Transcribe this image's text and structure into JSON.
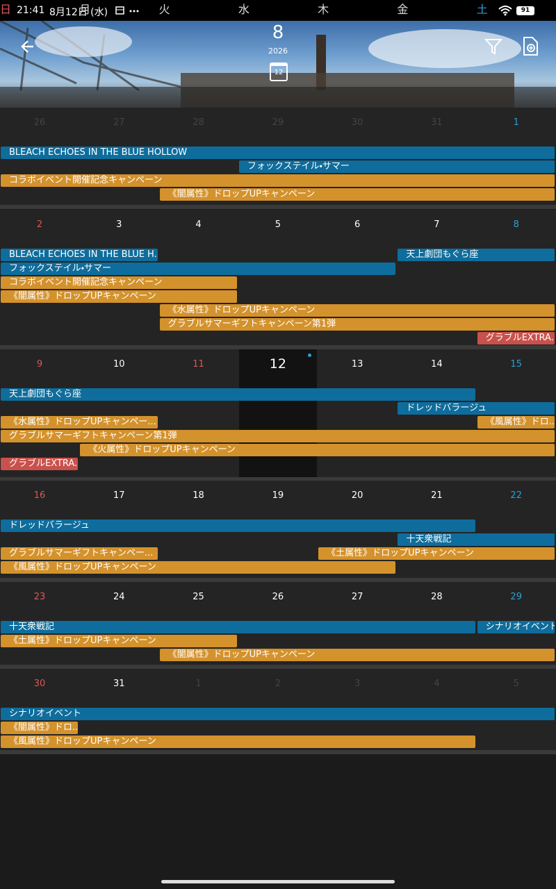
{
  "status": {
    "time": "21:41",
    "date": "8月12日 (水)",
    "battery": "91"
  },
  "header": {
    "month": "8",
    "year": "2026",
    "calendar_day": "12",
    "weekdays": [
      "日",
      "月",
      "火",
      "水",
      "木",
      "金",
      "土"
    ]
  },
  "weeks": [
    {
      "days": [
        26,
        27,
        28,
        29,
        30,
        31,
        1
      ],
      "events": [
        {
          "label": "BLEACH ECHOES IN THE BLUE HOLLOW"
        },
        {
          "label": "フォックステイル・サマー"
        },
        {
          "label": "コラボイベント開催記念キャンペーン"
        },
        {
          "label": "《闇属性》ドロップUPキャンペーン"
        }
      ]
    },
    {
      "days": [
        2,
        3,
        4,
        5,
        6,
        7,
        8
      ],
      "events": [
        {
          "label": "BLEACH ECHOES IN THE BLUE H..."
        },
        {
          "label": "天上劇団もぐら座"
        },
        {
          "label": "フォックステイル・サマー"
        },
        {
          "label": "コラボイベント開催記念キャンペーン"
        },
        {
          "label": "《闇属性》ドロップUPキャンペーン"
        },
        {
          "label": "《水属性》ドロップUPキャンペーン"
        },
        {
          "label": "グラブルサマーギフトキャンペーン第1弾"
        },
        {
          "label": "グラブルEXTRA..."
        }
      ]
    },
    {
      "days": [
        9,
        10,
        11,
        12,
        13,
        14,
        15
      ],
      "events": [
        {
          "label": "天上劇団もぐら座"
        },
        {
          "label": "ドレッドバラージュ"
        },
        {
          "label": "《水属性》ドロップUPキャンペー..."
        },
        {
          "label": "《風属性》ドロ..."
        },
        {
          "label": "グラブルサマーギフトキャンペーン第1弾"
        },
        {
          "label": "《火属性》ドロップUPキャンペーン"
        },
        {
          "label": "グラブルEXTRA..."
        }
      ]
    },
    {
      "days": [
        16,
        17,
        18,
        19,
        20,
        21,
        22
      ],
      "events": [
        {
          "label": "ドレッドバラージュ"
        },
        {
          "label": "十天衆戦記"
        },
        {
          "label": "グラブルサマーギフトキャンペー..."
        },
        {
          "label": "《土属性》ドロップUPキャンペーン"
        },
        {
          "label": "《風属性》ドロップUPキャンペーン"
        }
      ]
    },
    {
      "days": [
        23,
        24,
        25,
        26,
        27,
        28,
        29
      ],
      "events": [
        {
          "label": "十天衆戦記"
        },
        {
          "label": "シナリオイベント"
        },
        {
          "label": "《土属性》ドロップUPキャンペーン"
        },
        {
          "label": "《闇属性》ドロップUPキャンペーン"
        }
      ]
    },
    {
      "days": [
        30,
        31,
        1,
        2,
        3,
        4,
        5
      ],
      "events": [
        {
          "label": "シナリオイベント"
        },
        {
          "label": "《闇属性》ドロ..."
        },
        {
          "label": "《風属性》ドロップUPキャンペーン"
        }
      ]
    }
  ]
}
